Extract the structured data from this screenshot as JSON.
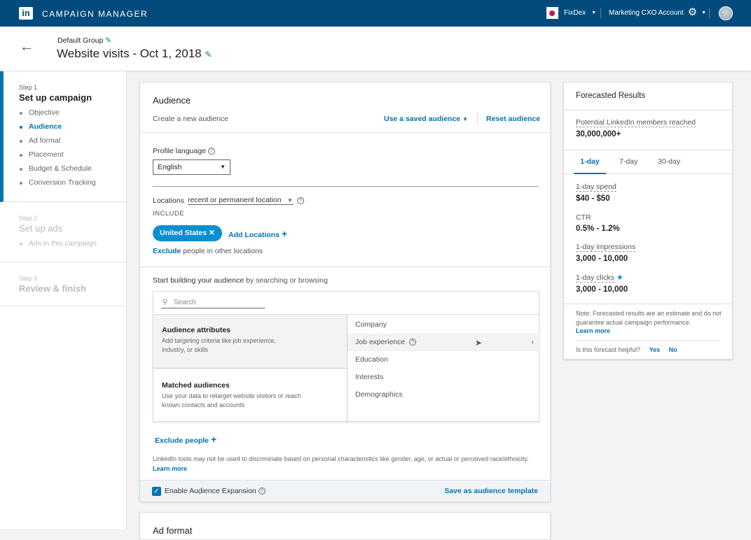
{
  "topbar": {
    "app_title": "CAMPAIGN MANAGER",
    "account": "FixDex",
    "sub_account": "Marketing CXO Account"
  },
  "header": {
    "group": "Default Group",
    "title": "Website visits - Oct 1, 2018"
  },
  "sidebar": {
    "steps": [
      {
        "step": "Step 1",
        "title": "Set up campaign",
        "items": [
          "Objective",
          "Audience",
          "Ad format",
          "Placement",
          "Budget & Schedule",
          "Conversion Tracking"
        ],
        "active": "Audience"
      },
      {
        "step": "Step 2",
        "title": "Set up ads",
        "items": [
          "Ads in this campaign"
        ]
      },
      {
        "step": "Step 3",
        "title": "Review & finish",
        "items": []
      }
    ]
  },
  "audience": {
    "title": "Audience",
    "subtitle": "Create a new audience",
    "use_saved": "Use a saved audience",
    "reset": "Reset audience",
    "profile_language_label": "Profile language",
    "profile_language_value": "English",
    "locations_label": "Locations",
    "locations_type": "recent or permanent location",
    "include_label": "INCLUDE",
    "location_chip": "United States",
    "add_locations": "Add Locations",
    "exclude_link": "Exclude",
    "exclude_text": " people in other locations",
    "build_bold": "Start building your audience",
    "build_rest": " by searching or browsing",
    "search_placeholder": "Search",
    "attributes_title": "Audience attributes",
    "attributes_desc": "Add targeting criteria like job experience, industry, or skills",
    "matched_title": "Matched audiences",
    "matched_desc": "Use your data to retarget website visitors or reach known contacts and accounts",
    "categories": [
      "Company",
      "Job experience",
      "Education",
      "Interests",
      "Demographics"
    ],
    "exclude_people": "Exclude people",
    "disclaimer": "LinkedIn tools may not be used to discriminate based on personal characteristics like gender, age, or actual or perceived race/ethnicity.",
    "learn_more": "Learn more",
    "expansion_label": "Enable Audience Expansion",
    "expansion_checked": true,
    "save_template": "Save as audience template"
  },
  "next_card_title": "Ad format",
  "forecast": {
    "title": "Forecasted Results",
    "reach_label": "Potential LinkedIn members reached",
    "reach_value": "30,000,000+",
    "tabs": [
      "1-day",
      "7-day",
      "30-day"
    ],
    "active_tab": "1-day",
    "metrics": [
      {
        "label": "1-day spend",
        "value": "$40 - $50"
      },
      {
        "label": "CTR",
        "value": "0.5% - 1.2%"
      },
      {
        "label": "1-day impressions",
        "value": "3,000 - 10,000"
      },
      {
        "label": "1-day clicks",
        "value": "3,000 - 10,000"
      }
    ],
    "note": "Note: Forecasted results are an estimate and do not guarantee actual campaign performance.",
    "learn_more": "Learn more",
    "helpful": "Is this forecast helpful?",
    "yes": "Yes",
    "no": "No"
  },
  "colors": {
    "topbar": "#004b7c",
    "accent": "#0073b1",
    "chip": "#0a8fcf"
  }
}
